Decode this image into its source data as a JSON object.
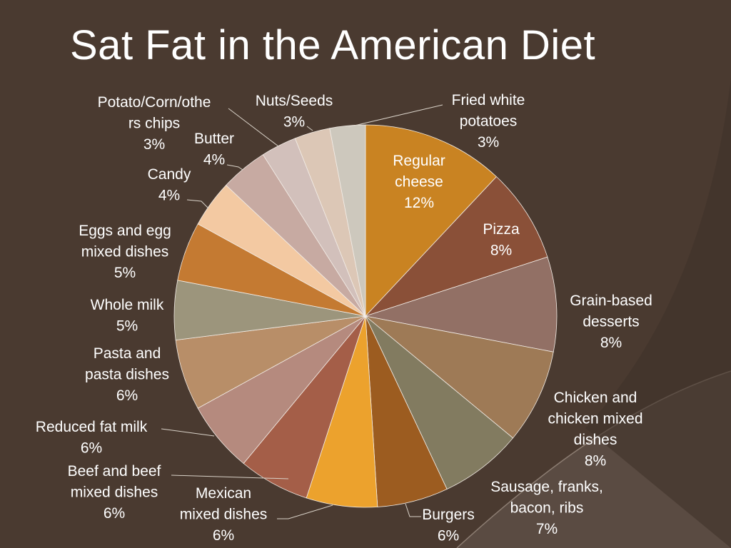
{
  "slide": {
    "title": "Sat Fat in the American Diet"
  },
  "colors": {
    "background": "#4a3a30",
    "title_text": "#ffffff",
    "label_text": "#ffffff"
  },
  "chart_data": {
    "type": "pie",
    "title": "Sat Fat in the American Diet",
    "start_position": "top",
    "direction": "clockwise",
    "slices": [
      {
        "label": "Regular cheese",
        "value": 12,
        "display": "12%",
        "color": "#c98322"
      },
      {
        "label": "Pizza",
        "value": 8,
        "display": "8%",
        "color": "#8a5038"
      },
      {
        "label": "Grain-based desserts",
        "value": 8,
        "display": "8%",
        "color": "#927065"
      },
      {
        "label": "Chicken and chicken mixed dishes",
        "value": 8,
        "display": "8%",
        "color": "#9e7a56"
      },
      {
        "label": "Sausage, franks, bacon, ribs",
        "value": 7,
        "display": "7%",
        "color": "#827b60"
      },
      {
        "label": "Burgers",
        "value": 6,
        "display": "6%",
        "color": "#9c5c20"
      },
      {
        "label": "Mexican mixed dishes",
        "value": 6,
        "display": "6%",
        "color": "#eca22d"
      },
      {
        "label": "Beef and beef mixed dishes",
        "value": 6,
        "display": "6%",
        "color": "#a45e48"
      },
      {
        "label": "Reduced fat milk",
        "value": 6,
        "display": "6%",
        "color": "#b58a7e"
      },
      {
        "label": "Pasta and pasta dishes",
        "value": 6,
        "display": "6%",
        "color": "#b88e68"
      },
      {
        "label": "Whole milk",
        "value": 5,
        "display": "5%",
        "color": "#9c957c"
      },
      {
        "label": "Eggs and egg mixed dishes",
        "value": 5,
        "display": "5%",
        "color": "#c47a32"
      },
      {
        "label": "Candy",
        "value": 4,
        "display": "4%",
        "color": "#f3c9a2"
      },
      {
        "label": "Butter",
        "value": 4,
        "display": "4%",
        "color": "#c7aaa2"
      },
      {
        "label": "Potato/Corn/others chips",
        "value": 3,
        "display": "3%",
        "color": "#d2c0bb"
      },
      {
        "label": "Nuts/Seeds",
        "value": 3,
        "display": "3%",
        "color": "#dcc7b6"
      },
      {
        "label": "Fried white potatoes",
        "value": 3,
        "display": "3%",
        "color": "#cdc8bd"
      }
    ]
  }
}
